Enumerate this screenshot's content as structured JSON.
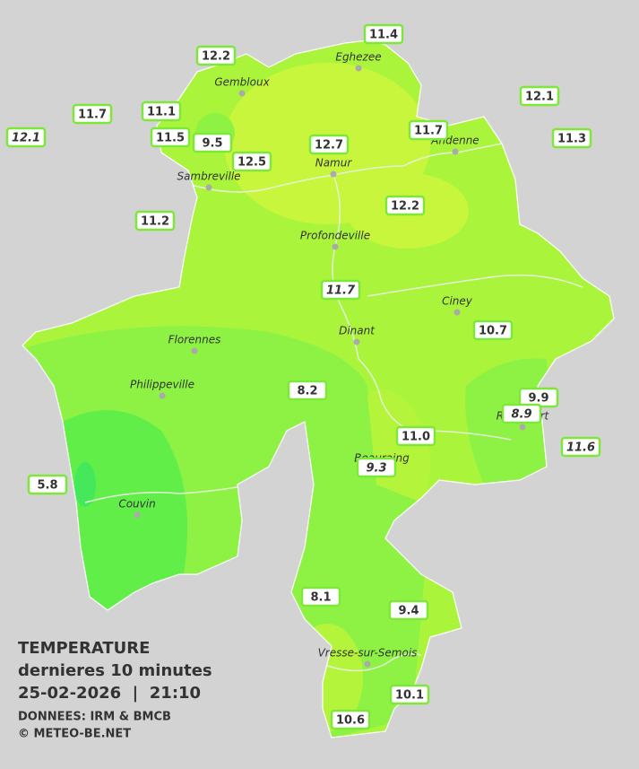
{
  "title": {
    "line1": "TEMPERATURE",
    "line2": "dernieres 10 minutes",
    "line3": "25-02-2026  |  21:10",
    "source": "DONNEES: IRM & BMCB",
    "copyright": "© METEO-BE.NET"
  },
  "cities": [
    "Eghezee",
    "Gembloux",
    "Andenne",
    "Namur",
    "Sambreville",
    "Profondeville",
    "Ciney",
    "Dinant",
    "Florennes",
    "Philippeville",
    "Rochefort",
    "Beauraing",
    "Couvin",
    "Vresse-sur-Semois"
  ],
  "stations": [
    {
      "label": "11.4"
    },
    {
      "label": "12.2"
    },
    {
      "label": "12.1"
    },
    {
      "label": "11.7"
    },
    {
      "label": "11.1"
    },
    {
      "label": "12.1",
      "italic": true
    },
    {
      "label": "11.5"
    },
    {
      "label": "9.5"
    },
    {
      "label": "12.7"
    },
    {
      "label": "11.7"
    },
    {
      "label": "11.3"
    },
    {
      "label": "12.5"
    },
    {
      "label": "12.2"
    },
    {
      "label": "11.2"
    },
    {
      "label": "11.7",
      "italic": true
    },
    {
      "label": "10.7"
    },
    {
      "label": "8.2"
    },
    {
      "label": "9.9"
    },
    {
      "label": "8.9",
      "italic": true
    },
    {
      "label": "11.0"
    },
    {
      "label": "11.6",
      "italic": true
    },
    {
      "label": "9.3",
      "italic": true
    },
    {
      "label": "5.8"
    },
    {
      "label": "8.1"
    },
    {
      "label": "9.4"
    },
    {
      "label": "10.1"
    },
    {
      "label": "10.6"
    }
  ]
}
